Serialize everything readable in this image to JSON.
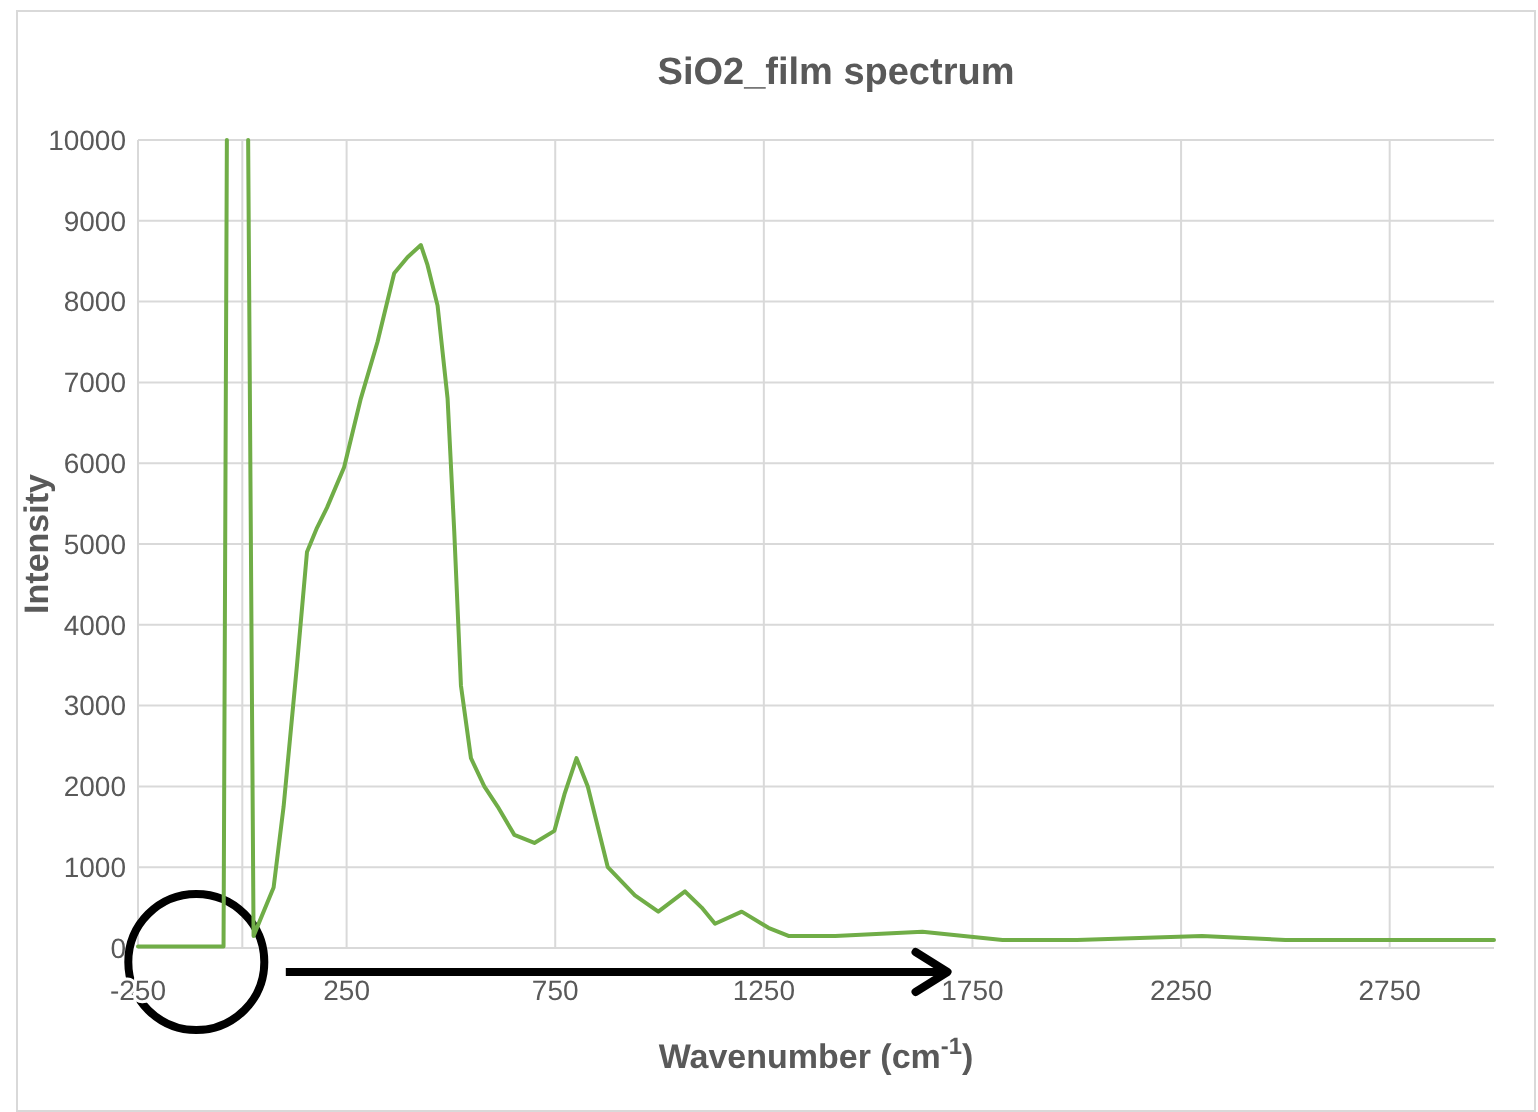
{
  "chart_data": {
    "type": "line",
    "title": "SiO2_film spectrum",
    "xlabel": "Wavenumber (cm$^{-1}$)",
    "ylabel": "Intensity",
    "xlim": [
      -250,
      3000
    ],
    "xticks": [
      -250,
      250,
      750,
      1250,
      1750,
      2250,
      2750
    ],
    "ylim": [
      0,
      10000
    ],
    "yticks": [
      0,
      1000,
      2000,
      3000,
      4000,
      5000,
      6000,
      7000,
      8000,
      9000,
      10000
    ],
    "grid": true,
    "marker": "none",
    "line_style": "solid",
    "series": [
      {
        "color": "#70ad47",
        "x": [
          -250,
          -150,
          -45,
          -37,
          null,
          14,
          27,
          75,
          99,
          131,
          155,
          179,
          203,
          244,
          284,
          324,
          364,
          396,
          428,
          444,
          468,
          492,
          508,
          524,
          548,
          580,
          612,
          652,
          700,
          748,
          772,
          801,
          828,
          876,
          941,
          997,
          1061,
          1101,
          1133,
          1197,
          1261,
          1309,
          1421,
          1630,
          1822,
          2000,
          2300,
          2500,
          2750,
          3000
        ],
        "values": [
          20,
          20,
          20,
          10000,
          null,
          10000,
          150,
          750,
          1750,
          3500,
          4900,
          5200,
          5450,
          5950,
          6800,
          7500,
          8350,
          8550,
          8700,
          8450,
          7950,
          6800,
          5150,
          3250,
          2350,
          2000,
          1750,
          1400,
          1300,
          1450,
          1900,
          2350,
          2000,
          1000,
          650,
          450,
          700,
          500,
          300,
          450,
          250,
          150,
          150,
          200,
          100,
          100,
          150,
          100,
          100,
          100
        ]
      }
    ]
  }
}
